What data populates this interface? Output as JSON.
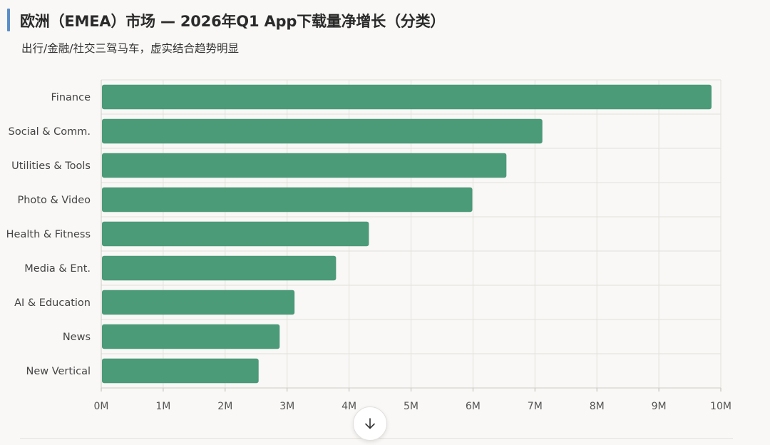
{
  "title": "欧洲（EMEA）市场 — 2026年Q1 App下载量净增长（分类）",
  "subtitle": "出行/金融/社交三驾马车，虚实结合趋势明显",
  "colors": {
    "bar": "#4b9a78",
    "grid": "#e4e1dc",
    "accent": "#5b8ec9",
    "axis_text": "#555555",
    "label_text": "#444444"
  },
  "scroll_button": {
    "icon": "arrow-down-icon"
  },
  "chart_data": {
    "type": "bar",
    "orientation": "horizontal",
    "categories": [
      "Finance",
      "Social & Comm.",
      "Utilities & Tools",
      "Photo & Video",
      "Health & Fitness",
      "Media & Ent.",
      "AI & Education",
      "News",
      "New Vertical"
    ],
    "values": [
      9850000,
      7120000,
      6540000,
      5990000,
      4320000,
      3790000,
      3120000,
      2880000,
      2540000
    ],
    "xlim": [
      0,
      10000000
    ],
    "xticks": [
      "0M",
      "1M",
      "2M",
      "3M",
      "4M",
      "5M",
      "6M",
      "7M",
      "8M",
      "9M",
      "10M"
    ],
    "grid": true,
    "legend": "none"
  }
}
